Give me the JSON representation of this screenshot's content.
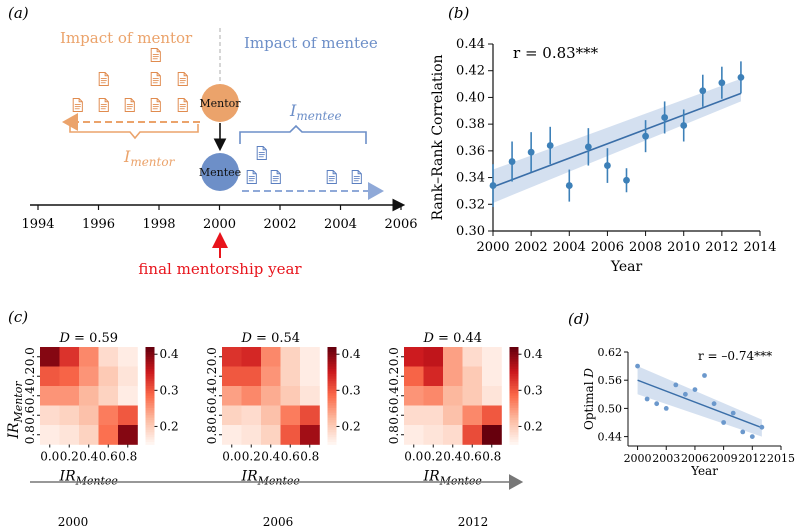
{
  "figure": {
    "panel_a": {
      "label": "(a)",
      "impact_mentor": "Impact of mentor",
      "impact_mentee": "Impact of mentee",
      "mentor_node": "Mentor",
      "mentee_node": "Mentee",
      "i_mentor_base": "I",
      "i_mentor_sub": "mentor",
      "i_mentee_base": "I",
      "i_mentee_sub": "mentee",
      "final_year_caption": "final mentorship year",
      "timeline_ticks": [
        "1994",
        "1996",
        "1998",
        "2000",
        "2002",
        "2004",
        "2006"
      ]
    },
    "panel_b": {
      "label": "(b)",
      "r_text": "r = 0.83***"
    },
    "panel_c": {
      "label": "(c)",
      "xlabel_base": "IR",
      "xlabel_sub": "Mentee",
      "ylabel_base": "IR",
      "ylabel_sub": "Mentor",
      "timeline_labels": [
        "2000",
        "2006",
        "2012"
      ]
    },
    "panel_d": {
      "label": "(d)",
      "r_text": "r = –0.74***"
    }
  },
  "colors": {
    "mentor": "#eba36b",
    "mentee": "#6d8fc8",
    "accent_red": "#e8141c",
    "trend": "#3a6ea8",
    "band": "#c9d8ec",
    "point": "#3d80b8"
  },
  "chart_data": [
    {
      "type": "scatter",
      "panel": "b",
      "title": "",
      "xlabel": "Year",
      "ylabel": "Rank–Rank Correlation",
      "xlim": [
        2000,
        2014
      ],
      "ylim": [
        0.3,
        0.44
      ],
      "xticks": [
        2000,
        2002,
        2004,
        2006,
        2008,
        2010,
        2012,
        2014
      ],
      "yticks": [
        0.3,
        0.32,
        0.34,
        0.36,
        0.38,
        0.4,
        0.42,
        0.44
      ],
      "x": [
        2000,
        2001,
        2002,
        2003,
        2004,
        2005,
        2006,
        2007,
        2008,
        2009,
        2010,
        2011,
        2012,
        2013
      ],
      "y": [
        0.334,
        0.352,
        0.359,
        0.364,
        0.334,
        0.363,
        0.349,
        0.338,
        0.371,
        0.385,
        0.379,
        0.405,
        0.411,
        0.415
      ],
      "err": [
        0.016,
        0.015,
        0.015,
        0.014,
        0.012,
        0.014,
        0.013,
        0.009,
        0.012,
        0.012,
        0.012,
        0.012,
        0.012,
        0.012
      ],
      "fit": {
        "x": [
          2000,
          2013
        ],
        "y": [
          0.333,
          0.403
        ]
      },
      "band_lower": [
        0.321,
        0.397
      ],
      "band_upper": [
        0.346,
        0.414
      ],
      "annotation": "r = 0.83***"
    },
    {
      "type": "heatmap",
      "panel": "c",
      "title": "D = 0.59",
      "title_var": "D",
      "title_value": "0.59",
      "timeline_label": "2000",
      "xticks": [
        "0.0",
        "0.2",
        "0.4",
        "0.6",
        "0.8"
      ],
      "yticks": [
        "0.0",
        "0.2",
        "0.4",
        "0.6",
        "0.8"
      ],
      "colorbar_ticks": [
        "0.4",
        "0.3",
        "0.2"
      ],
      "vmin": 0.15,
      "vmax": 0.42,
      "values": [
        [
          0.4,
          0.33,
          0.26,
          0.18,
          0.16
        ],
        [
          0.3,
          0.29,
          0.25,
          0.2,
          0.17
        ],
        [
          0.25,
          0.25,
          0.22,
          0.19,
          0.16
        ],
        [
          0.18,
          0.19,
          0.21,
          0.27,
          0.3
        ],
        [
          0.16,
          0.17,
          0.19,
          0.28,
          0.4
        ]
      ]
    },
    {
      "type": "heatmap",
      "panel": "c",
      "title": "D = 0.54",
      "title_var": "D",
      "title_value": "0.54",
      "timeline_label": "2006",
      "xticks": [
        "0.0",
        "0.2",
        "0.4",
        "0.6",
        "0.8"
      ],
      "yticks": [
        "0.0",
        "0.2",
        "0.4",
        "0.6",
        "0.8"
      ],
      "colorbar_ticks": [
        "0.4",
        "0.3",
        "0.2"
      ],
      "vmin": 0.15,
      "vmax": 0.42,
      "values": [
        [
          0.33,
          0.34,
          0.26,
          0.19,
          0.16
        ],
        [
          0.3,
          0.3,
          0.25,
          0.19,
          0.16
        ],
        [
          0.24,
          0.26,
          0.23,
          0.2,
          0.17
        ],
        [
          0.19,
          0.18,
          0.21,
          0.27,
          0.31
        ],
        [
          0.16,
          0.17,
          0.19,
          0.3,
          0.38
        ]
      ]
    },
    {
      "type": "heatmap",
      "panel": "c",
      "title": "D = 0.44",
      "title_var": "D",
      "title_value": "0.44",
      "timeline_label": "2012",
      "xticks": [
        "0.0",
        "0.2",
        "0.4",
        "0.6",
        "0.8"
      ],
      "yticks": [
        "0.0",
        "0.2",
        "0.4",
        "0.6",
        "0.8"
      ],
      "colorbar_ticks": [
        "0.4",
        "0.3",
        "0.2"
      ],
      "vmin": 0.15,
      "vmax": 0.42,
      "values": [
        [
          0.35,
          0.36,
          0.24,
          0.18,
          0.16
        ],
        [
          0.29,
          0.34,
          0.24,
          0.2,
          0.16
        ],
        [
          0.25,
          0.26,
          0.22,
          0.2,
          0.17
        ],
        [
          0.18,
          0.18,
          0.21,
          0.26,
          0.3
        ],
        [
          0.16,
          0.17,
          0.18,
          0.31,
          0.42
        ]
      ]
    },
    {
      "type": "scatter",
      "panel": "d",
      "title": "",
      "xlabel": "Year",
      "ylabel": "Optimal D",
      "ylabel_base": "Optimal ",
      "ylabel_var": "D",
      "xlim": [
        1999,
        2015
      ],
      "ylim": [
        0.42,
        0.62
      ],
      "xticks": [
        2000,
        2003,
        2006,
        2009,
        2012,
        2015
      ],
      "yticks": [
        0.44,
        0.5,
        0.56,
        0.62
      ],
      "x": [
        2000,
        2001,
        2002,
        2003,
        2004,
        2005,
        2006,
        2007,
        2008,
        2009,
        2010,
        2011,
        2012,
        2013
      ],
      "y": [
        0.59,
        0.52,
        0.51,
        0.5,
        0.55,
        0.53,
        0.54,
        0.57,
        0.51,
        0.47,
        0.49,
        0.45,
        0.44,
        0.46
      ],
      "fit": {
        "x": [
          2000,
          2013
        ],
        "y": [
          0.56,
          0.459
        ]
      },
      "band_lower": [
        0.53,
        0.44
      ],
      "band_upper": [
        0.59,
        0.476
      ],
      "annotation": "r = –0.74***"
    }
  ]
}
